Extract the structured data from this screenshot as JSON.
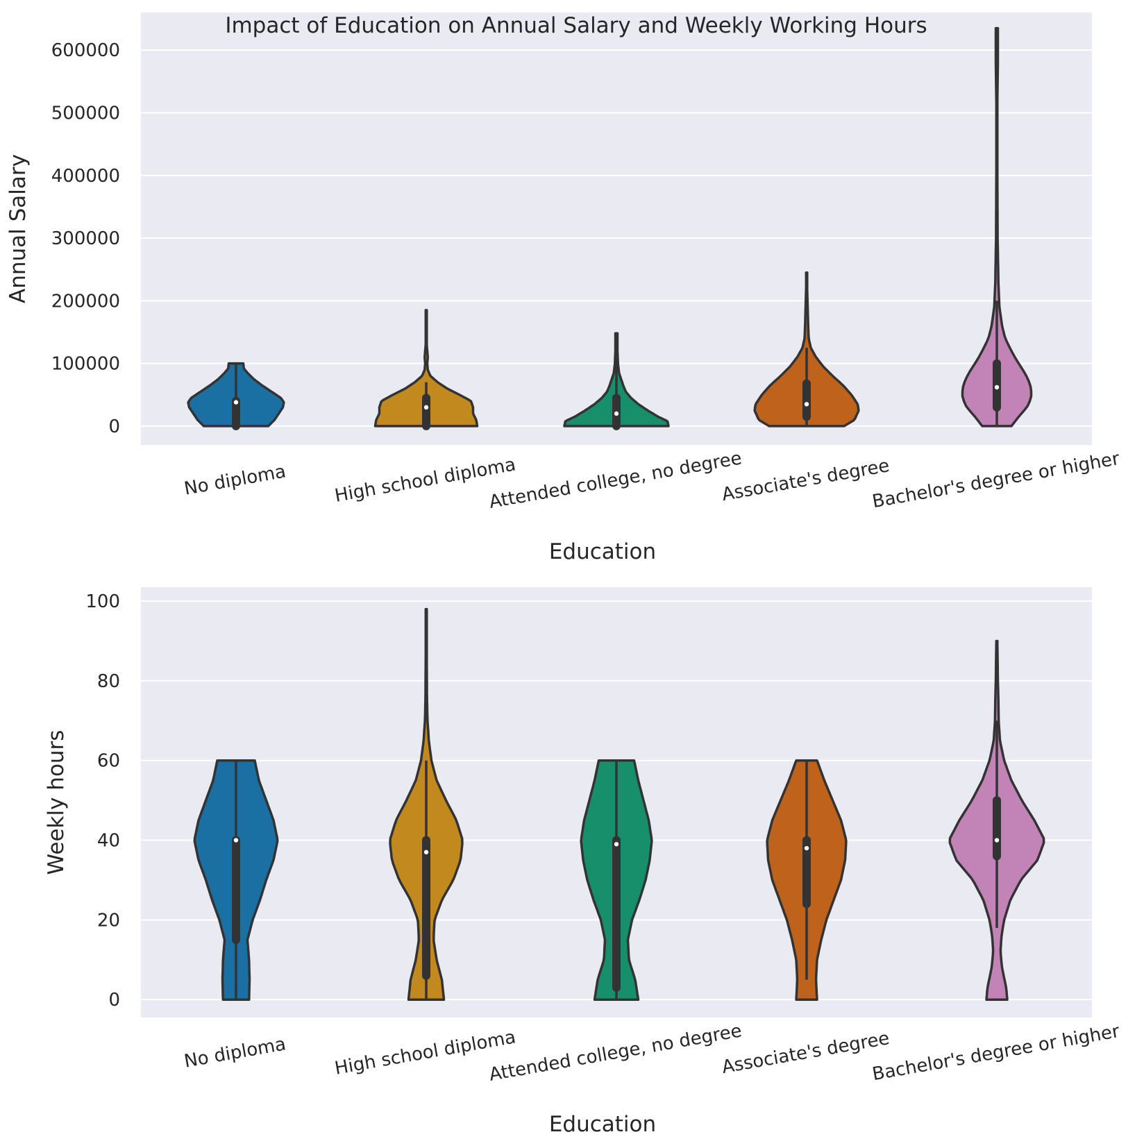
{
  "figure": {
    "title": "Impact of Education on Annual Salary and Weekly Working Hours"
  },
  "colors": {
    "background": "#eaeaf2",
    "grid": "#ffffff",
    "outline": "#333333",
    "palette": [
      "#1a70a3",
      "#c2891f",
      "#178f6b",
      "#bf621c",
      "#c283b6"
    ]
  },
  "chart_data": [
    {
      "type": "violin",
      "xlabel": "Education",
      "ylabel": "Annual Salary",
      "ylim": [
        -30000,
        660000
      ],
      "yticks": [
        0,
        100000,
        200000,
        300000,
        400000,
        500000,
        600000
      ],
      "grid": true,
      "categories": [
        "No diploma",
        "High school diploma",
        "Attended college, no degree",
        "Associate's degree",
        "Bachelor's degree or higher"
      ],
      "violins": [
        {
          "category": "No diploma",
          "median": 38000,
          "q1": 0,
          "q3": 40000,
          "whisker_low": 0,
          "whisker_high": 100000,
          "density": [
            [
              0,
              0.62
            ],
            [
              10000,
              0.74
            ],
            [
              20000,
              0.82
            ],
            [
              30000,
              0.9
            ],
            [
              38000,
              0.92
            ],
            [
              45000,
              0.86
            ],
            [
              55000,
              0.68
            ],
            [
              65000,
              0.5
            ],
            [
              75000,
              0.34
            ],
            [
              85000,
              0.22
            ],
            [
              92000,
              0.15
            ],
            [
              100000,
              0.14
            ]
          ]
        },
        {
          "category": "High school diploma",
          "median": 30000,
          "q1": 0,
          "q3": 45000,
          "whisker_low": 0,
          "whisker_high": 70000,
          "density": [
            [
              0,
              0.98
            ],
            [
              10000,
              0.96
            ],
            [
              20000,
              0.9
            ],
            [
              30000,
              0.9
            ],
            [
              40000,
              0.86
            ],
            [
              50000,
              0.64
            ],
            [
              60000,
              0.4
            ],
            [
              70000,
              0.22
            ],
            [
              80000,
              0.08
            ],
            [
              90000,
              0.03
            ],
            [
              100000,
              0.02
            ],
            [
              110000,
              0.03
            ],
            [
              120000,
              0.02
            ],
            [
              130000,
              0.01
            ],
            [
              150000,
              0.01
            ],
            [
              170000,
              0.01
            ],
            [
              185000,
              0.01
            ]
          ]
        },
        {
          "category": "Attended college, no degree",
          "median": 20000,
          "q1": 0,
          "q3": 45000,
          "whisker_low": 0,
          "whisker_high": 110000,
          "density": [
            [
              0,
              1.0
            ],
            [
              8000,
              0.98
            ],
            [
              15000,
              0.8
            ],
            [
              25000,
              0.6
            ],
            [
              35000,
              0.42
            ],
            [
              45000,
              0.28
            ],
            [
              55000,
              0.18
            ],
            [
              65000,
              0.13
            ],
            [
              75000,
              0.09
            ],
            [
              85000,
              0.05
            ],
            [
              100000,
              0.03
            ],
            [
              120000,
              0.02
            ],
            [
              135000,
              0.02
            ],
            [
              148000,
              0.02
            ]
          ]
        },
        {
          "category": "Associate's degree",
          "median": 35000,
          "q1": 15000,
          "q3": 68000,
          "whisker_low": 0,
          "whisker_high": 125000,
          "density": [
            [
              0,
              0.72
            ],
            [
              10000,
              0.92
            ],
            [
              25000,
              1.0
            ],
            [
              35000,
              0.98
            ],
            [
              50000,
              0.86
            ],
            [
              65000,
              0.7
            ],
            [
              80000,
              0.5
            ],
            [
              95000,
              0.32
            ],
            [
              110000,
              0.18
            ],
            [
              125000,
              0.08
            ],
            [
              140000,
              0.04
            ],
            [
              160000,
              0.03
            ],
            [
              190000,
              0.02
            ],
            [
              220000,
              0.01
            ],
            [
              245000,
              0.01
            ]
          ]
        },
        {
          "category": "Bachelor's degree or higher",
          "median": 62000,
          "q1": 30000,
          "q3": 100000,
          "whisker_low": 0,
          "whisker_high": 200000,
          "density": [
            [
              0,
              0.28
            ],
            [
              15000,
              0.42
            ],
            [
              30000,
              0.58
            ],
            [
              45000,
              0.66
            ],
            [
              60000,
              0.66
            ],
            [
              75000,
              0.6
            ],
            [
              90000,
              0.5
            ],
            [
              105000,
              0.38
            ],
            [
              120000,
              0.28
            ],
            [
              140000,
              0.16
            ],
            [
              160000,
              0.1
            ],
            [
              190000,
              0.05
            ],
            [
              230000,
              0.03
            ],
            [
              300000,
              0.015
            ],
            [
              400000,
              0.01
            ],
            [
              520000,
              0.01
            ],
            [
              580000,
              0.02
            ],
            [
              635000,
              0.02
            ]
          ]
        }
      ]
    },
    {
      "type": "violin",
      "xlabel": "Education",
      "ylabel": "Weekly hours",
      "ylim": [
        -4.5,
        103.5
      ],
      "yticks": [
        0,
        20,
        40,
        60,
        80,
        100
      ],
      "grid": true,
      "categories": [
        "No diploma",
        "High school diploma",
        "Attended college, no degree",
        "Associate's degree",
        "Bachelor's degree or higher"
      ],
      "violins": [
        {
          "category": "No diploma",
          "median": 40,
          "q1": 15,
          "q3": 40,
          "whisker_low": 0,
          "whisker_high": 60,
          "density": [
            [
              0,
              0.25
            ],
            [
              5,
              0.26
            ],
            [
              10,
              0.25
            ],
            [
              15,
              0.22
            ],
            [
              20,
              0.32
            ],
            [
              25,
              0.46
            ],
            [
              30,
              0.58
            ],
            [
              35,
              0.72
            ],
            [
              40,
              0.8
            ],
            [
              45,
              0.72
            ],
            [
              50,
              0.58
            ],
            [
              55,
              0.44
            ],
            [
              60,
              0.36
            ]
          ]
        },
        {
          "category": "High school diploma",
          "median": 37,
          "q1": 6,
          "q3": 40,
          "whisker_low": 0,
          "whisker_high": 60,
          "density": [
            [
              0,
              0.34
            ],
            [
              5,
              0.3
            ],
            [
              10,
              0.2
            ],
            [
              15,
              0.14
            ],
            [
              20,
              0.16
            ],
            [
              25,
              0.3
            ],
            [
              30,
              0.52
            ],
            [
              35,
              0.66
            ],
            [
              40,
              0.7
            ],
            [
              45,
              0.58
            ],
            [
              50,
              0.38
            ],
            [
              55,
              0.2
            ],
            [
              60,
              0.1
            ],
            [
              65,
              0.05
            ],
            [
              70,
              0.025
            ],
            [
              75,
              0.015
            ],
            [
              85,
              0.01
            ],
            [
              98,
              0.01
            ]
          ]
        },
        {
          "category": "Attended college, no degree",
          "median": 39,
          "q1": 3,
          "q3": 40,
          "whisker_low": 0,
          "whisker_high": 60,
          "density": [
            [
              0,
              0.42
            ],
            [
              5,
              0.36
            ],
            [
              10,
              0.24
            ],
            [
              15,
              0.22
            ],
            [
              20,
              0.3
            ],
            [
              25,
              0.44
            ],
            [
              30,
              0.56
            ],
            [
              35,
              0.64
            ],
            [
              40,
              0.68
            ],
            [
              45,
              0.62
            ],
            [
              50,
              0.52
            ],
            [
              55,
              0.42
            ],
            [
              60,
              0.34
            ]
          ]
        },
        {
          "category": "Associate's degree",
          "median": 38,
          "q1": 24,
          "q3": 40,
          "whisker_low": 5,
          "whisker_high": 60,
          "density": [
            [
              0,
              0.2
            ],
            [
              5,
              0.18
            ],
            [
              10,
              0.2
            ],
            [
              15,
              0.28
            ],
            [
              20,
              0.38
            ],
            [
              25,
              0.52
            ],
            [
              30,
              0.66
            ],
            [
              35,
              0.74
            ],
            [
              40,
              0.76
            ],
            [
              45,
              0.66
            ],
            [
              50,
              0.5
            ],
            [
              55,
              0.34
            ],
            [
              60,
              0.2
            ]
          ]
        },
        {
          "category": "Bachelor's degree or higher",
          "median": 40,
          "q1": 36,
          "q3": 50,
          "whisker_low": 18,
          "whisker_high": 70,
          "density": [
            [
              0,
              0.2
            ],
            [
              3,
              0.18
            ],
            [
              8,
              0.1
            ],
            [
              12,
              0.07
            ],
            [
              16,
              0.09
            ],
            [
              20,
              0.14
            ],
            [
              25,
              0.26
            ],
            [
              30,
              0.46
            ],
            [
              35,
              0.78
            ],
            [
              40,
              0.92
            ],
            [
              45,
              0.72
            ],
            [
              50,
              0.48
            ],
            [
              55,
              0.28
            ],
            [
              60,
              0.14
            ],
            [
              65,
              0.06
            ],
            [
              70,
              0.035
            ],
            [
              75,
              0.03
            ],
            [
              80,
              0.02
            ],
            [
              85,
              0.015
            ],
            [
              90,
              0.01
            ]
          ]
        }
      ]
    }
  ]
}
